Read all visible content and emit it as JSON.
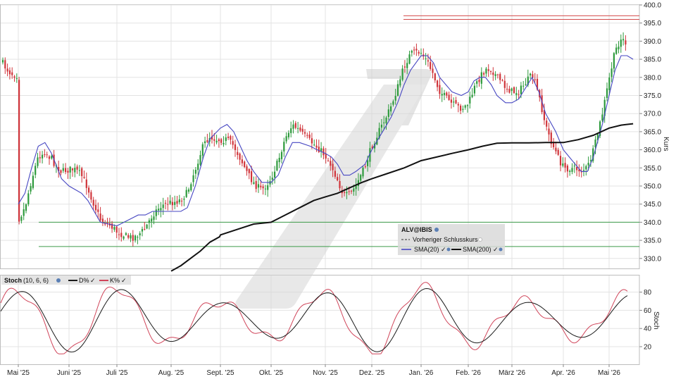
{
  "chart_data": [
    {
      "type": "candlestick",
      "symbol": "ALV@IBIS",
      "ylabel": "Kurs",
      "ylim": [
        326,
        400
      ],
      "y_ticks": [
        330,
        335,
        340,
        345,
        350,
        355,
        360,
        365,
        370,
        375,
        380,
        385,
        390,
        395,
        400
      ],
      "x_ticks": [
        "Mai '25",
        "Juni '25",
        "Juli '25",
        "Aug. '25",
        "Sept. '25",
        "Okt. '25",
        "Nov. '25",
        "Dez. '25",
        "Jan. '26",
        "Feb. '26",
        "März '26",
        "Apr. '26",
        "Mai '26"
      ],
      "legend": {
        "title": "ALV@IBIS",
        "items": [
          "Vorheriger Schlusskurs",
          "SMA(20)",
          "SMA(200)"
        ]
      },
      "horizontal_levels": [
        396,
        397,
        340,
        333.3
      ],
      "sma20_points": [
        [
          "Mai '25",
          345
        ],
        [
          4,
          348
        ],
        [
          8,
          355
        ],
        [
          12,
          361
        ],
        [
          16,
          362
        ],
        [
          20,
          359
        ],
        [
          26,
          352
        ],
        [
          "Juni '25",
          350
        ],
        [
          4,
          349
        ],
        [
          8,
          348
        ],
        [
          12,
          346
        ],
        [
          16,
          343
        ],
        [
          20,
          340
        ],
        [
          "Juli '25",
          339
        ],
        [
          4,
          340
        ],
        [
          8,
          341
        ],
        [
          12,
          342
        ],
        [
          16,
          342
        ],
        [
          20,
          343
        ],
        [
          "Aug. '25",
          343
        ],
        [
          3,
          343
        ],
        [
          6,
          343
        ],
        [
          10,
          344
        ],
        [
          15,
          350
        ],
        [
          20,
          358
        ],
        [
          24,
          363
        ],
        [
          "Sept. '25",
          366
        ],
        [
          4,
          367
        ],
        [
          8,
          365
        ],
        [
          12,
          361
        ],
        [
          16,
          357
        ],
        [
          20,
          354
        ],
        [
          25,
          351
        ],
        [
          "Okt. '25",
          351
        ],
        [
          4,
          353
        ],
        [
          8,
          358
        ],
        [
          12,
          362
        ],
        [
          16,
          362
        ],
        [
          22,
          361
        ],
        [
          26,
          360
        ],
        [
          "Nov. '25",
          359
        ],
        [
          4,
          358
        ],
        [
          8,
          356
        ],
        [
          12,
          353
        ],
        [
          16,
          353
        ],
        [
          20,
          354
        ],
        [
          26,
          356
        ],
        [
          "Dez. '25",
          360
        ],
        [
          4,
          363
        ],
        [
          8,
          366
        ],
        [
          12,
          369
        ],
        [
          16,
          373
        ],
        [
          20,
          378
        ],
        [
          24,
          382
        ],
        [
          "Jan. '26",
          386
        ],
        [
          4,
          386
        ],
        [
          8,
          384
        ],
        [
          12,
          380
        ],
        [
          16,
          378
        ],
        [
          20,
          376
        ],
        [
          26,
          375
        ],
        [
          "Feb. '26",
          376
        ],
        [
          4,
          379
        ],
        [
          8,
          380
        ],
        [
          12,
          380
        ],
        [
          16,
          378
        ],
        [
          20,
          375
        ],
        [
          26,
          373
        ],
        [
          "März '26",
          373
        ],
        [
          4,
          374
        ],
        [
          8,
          377
        ],
        [
          12,
          380
        ],
        [
          16,
          376
        ],
        [
          20,
          370
        ],
        [
          26,
          365
        ],
        [
          "Apr. '26",
          360
        ],
        [
          4,
          358
        ],
        [
          8,
          356
        ],
        [
          12,
          354
        ],
        [
          16,
          354
        ],
        [
          20,
          358
        ],
        [
          26,
          367
        ],
        [
          "Mai '26",
          375
        ],
        [
          4,
          382
        ],
        [
          8,
          386
        ],
        [
          12,
          386
        ],
        [
          16,
          385
        ]
      ],
      "sma200_points": [
        [
          "Aug. '25",
          326.5
        ],
        [
          6,
          328
        ],
        [
          12,
          330
        ],
        [
          18,
          332
        ],
        [
          24,
          334.5
        ],
        [
          30,
          336
        ],
        [
          "Sept. '25",
          336.5
        ],
        [
          10,
          338
        ],
        [
          20,
          339.5
        ],
        [
          "Okt. '25",
          340
        ],
        [
          8,
          342
        ],
        [
          16,
          344
        ],
        [
          24,
          346
        ],
        [
          "Nov. '25",
          347
        ],
        [
          8,
          348
        ],
        [
          16,
          349.5
        ],
        [
          24,
          351
        ],
        [
          "Dez. '25",
          352
        ],
        [
          10,
          353.5
        ],
        [
          20,
          355
        ],
        [
          "Jan. '26",
          357
        ],
        [
          10,
          358
        ],
        [
          20,
          359
        ],
        [
          "Feb. '26",
          360
        ],
        [
          10,
          361
        ],
        [
          20,
          361.8
        ],
        [
          "März '26",
          361.9
        ],
        [
          10,
          361.9
        ],
        [
          20,
          362
        ],
        [
          "Apr. '26",
          362
        ],
        [
          10,
          362.8
        ],
        [
          20,
          364
        ],
        [
          "Mai '26",
          366
        ],
        [
          8,
          366.8
        ],
        [
          16,
          367.2
        ]
      ],
      "candles": "approximate daily OHLC read from the figure, rendered in the drawing script"
    },
    {
      "type": "line",
      "title": "Stoch",
      "params": "(10, 6, 6)",
      "ylabel": "Stoch",
      "ylim": [
        10,
        95
      ],
      "y_ticks": [
        20,
        40,
        60,
        80
      ],
      "series": [
        {
          "name": "D%",
          "color": "#1a1a1a"
        },
        {
          "name": "K%",
          "color": "#d0455a"
        }
      ]
    }
  ]
}
